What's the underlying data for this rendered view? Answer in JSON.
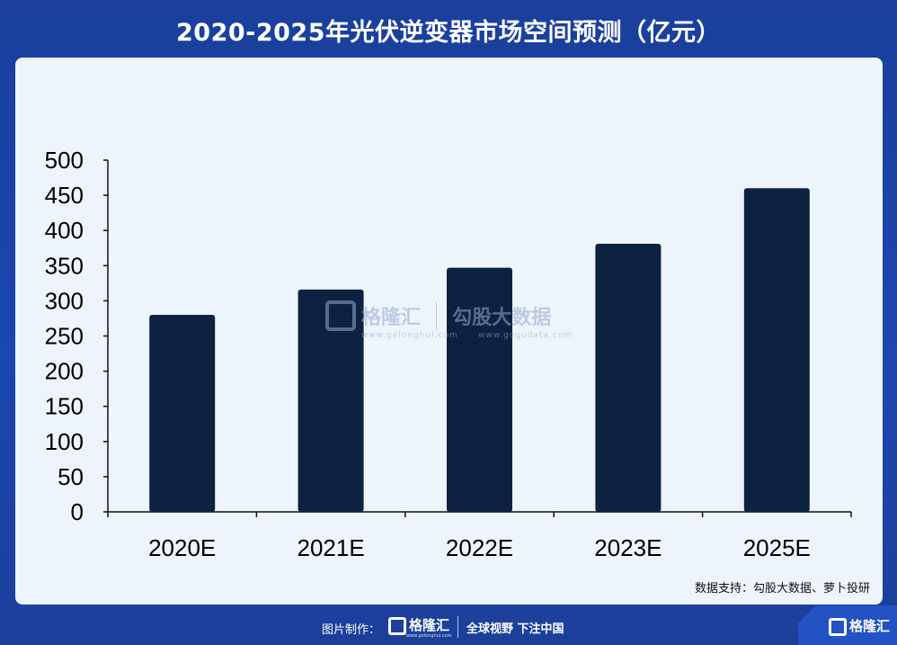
{
  "title": "2020-2025年光伏逆变器市场空间预测（亿元）",
  "source": "数据支持：勾股大数据、萝卜投研",
  "watermark": {
    "brand_left": "格隆汇",
    "url_left": "www.gelonghui.com",
    "brand_right": "勾股大数据",
    "url_right": "www.gogudata.com"
  },
  "footer": {
    "made_by": "图片制作：",
    "logo": "格隆汇",
    "logo_url": "www.gelonghui.com",
    "slogan": "全球视野 下注中国",
    "corner_logo": "格隆汇"
  },
  "colors": {
    "background": "#1b47b0",
    "panel": "#eef4fb",
    "bar": "#0d2240",
    "axis": "#111111"
  },
  "chart_data": {
    "type": "bar",
    "categories": [
      "2020E",
      "2021E",
      "2022E",
      "2023E",
      "2025E"
    ],
    "values": [
      280,
      316,
      347,
      381,
      460
    ],
    "ylim": [
      0,
      500
    ],
    "yticks": [
      0,
      50,
      100,
      150,
      200,
      250,
      300,
      350,
      400,
      450,
      500
    ],
    "title": "",
    "xlabel": "",
    "ylabel": "",
    "grid": false,
    "legend": "none"
  }
}
